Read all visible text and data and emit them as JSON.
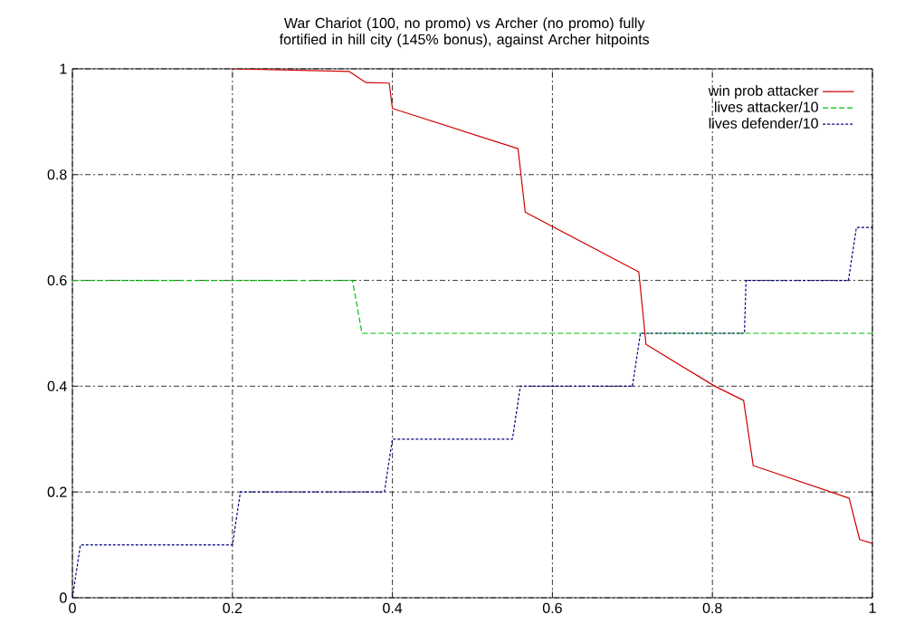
{
  "chart_data": {
    "type": "line",
    "title": "War Chariot (100, no promo) vs Archer (no promo) fully fortified in hill city (145% bonus), against Archer hitpoints",
    "xlim": [
      0,
      1
    ],
    "ylim": [
      0,
      1
    ],
    "xticks": [
      0,
      0.2,
      0.4,
      0.6,
      0.8,
      1
    ],
    "yticks": [
      0,
      0.2,
      0.4,
      0.6,
      0.8,
      1
    ],
    "grid": true,
    "legend": "top right",
    "series": [
      {
        "name": "win prob attacker",
        "color": "#d00000",
        "line_style": "solid",
        "x": [
          0.2,
          0.346,
          0.367,
          0.396,
          0.4,
          0.557,
          0.566,
          0.708,
          0.717,
          0.803,
          0.839,
          0.851,
          0.971,
          0.984,
          1.0
        ],
        "values": [
          1.0,
          0.995,
          0.974,
          0.973,
          0.925,
          0.849,
          0.729,
          0.616,
          0.479,
          0.4,
          0.373,
          0.25,
          0.188,
          0.11,
          0.103
        ]
      },
      {
        "name": "lives attacker/10",
        "color": "#00c000",
        "line_style": "dashed",
        "x": [
          0,
          0.35,
          0.362,
          1.0
        ],
        "values": [
          0.6,
          0.6,
          0.5,
          0.5
        ]
      },
      {
        "name": "lives defender/10",
        "color": "#000080",
        "line_style": "dotted",
        "x": [
          0,
          0.01,
          0.2,
          0.21,
          0.39,
          0.4,
          0.55,
          0.56,
          0.7,
          0.71,
          0.84,
          0.842,
          0.97,
          0.98,
          1.0
        ],
        "values": [
          0,
          0.1,
          0.1,
          0.2,
          0.2,
          0.3,
          0.3,
          0.4,
          0.4,
          0.5,
          0.5,
          0.6,
          0.6,
          0.7,
          0.7
        ]
      }
    ]
  }
}
